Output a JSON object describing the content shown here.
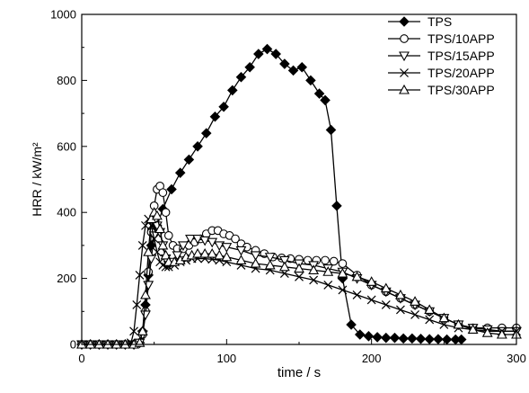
{
  "chart_data": {
    "type": "line",
    "title": "",
    "xlabel": "time / s",
    "ylabel": "HRR / kW/m²",
    "xlim": [
      0,
      300
    ],
    "ylim": [
      0,
      1000
    ],
    "x_ticks": [
      0,
      100,
      200,
      300
    ],
    "y_ticks": [
      0,
      200,
      400,
      600,
      800,
      1000
    ],
    "x_minor_step": 50,
    "y_minor_step": 100,
    "grid": false,
    "legend_position": "top-right",
    "series": [
      {
        "name": "TPS",
        "marker": "diamond-filled",
        "x": [
          0,
          6,
          12,
          18,
          24,
          30,
          36,
          40,
          42,
          44,
          46,
          48,
          52,
          56,
          62,
          68,
          74,
          80,
          86,
          92,
          98,
          104,
          110,
          116,
          122,
          128,
          134,
          140,
          146,
          152,
          158,
          164,
          168,
          172,
          176,
          180,
          186,
          192,
          198,
          204,
          210,
          216,
          222,
          228,
          234,
          240,
          246,
          252,
          258,
          262
        ],
        "y": [
          0,
          0,
          0,
          0,
          0,
          0,
          0,
          5,
          40,
          120,
          210,
          300,
          360,
          410,
          470,
          520,
          560,
          600,
          640,
          690,
          720,
          770,
          810,
          840,
          880,
          895,
          880,
          850,
          830,
          840,
          800,
          760,
          740,
          650,
          420,
          200,
          60,
          30,
          25,
          22,
          20,
          20,
          18,
          18,
          17,
          16,
          16,
          15,
          15,
          15
        ]
      },
      {
        "name": "TPS/10APP",
        "marker": "circle-open",
        "x": [
          0,
          6,
          12,
          18,
          24,
          30,
          36,
          40,
          42,
          44,
          46,
          48,
          50,
          52,
          54,
          56,
          58,
          60,
          63,
          66,
          70,
          74,
          78,
          82,
          86,
          90,
          94,
          98,
          102,
          106,
          110,
          114,
          120,
          126,
          132,
          138,
          144,
          150,
          156,
          162,
          168,
          174,
          180,
          190,
          200,
          210,
          220,
          230,
          240,
          250,
          260,
          270,
          280,
          290,
          300
        ],
        "y": [
          0,
          0,
          0,
          0,
          0,
          0,
          0,
          5,
          30,
          100,
          220,
          340,
          420,
          470,
          480,
          460,
          400,
          330,
          300,
          290,
          290,
          300,
          310,
          320,
          335,
          345,
          345,
          335,
          330,
          320,
          305,
          295,
          285,
          275,
          265,
          262,
          260,
          258,
          255,
          255,
          255,
          252,
          245,
          210,
          180,
          160,
          140,
          120,
          100,
          80,
          60,
          50,
          50,
          50,
          50
        ]
      },
      {
        "name": "TPS/15APP",
        "marker": "triangle-down-open",
        "x": [
          0,
          6,
          12,
          18,
          24,
          30,
          36,
          40,
          42,
          44,
          46,
          48,
          50,
          52,
          54,
          56,
          58,
          60,
          63,
          66,
          70,
          75,
          80,
          85,
          90,
          95,
          100,
          110,
          120,
          130,
          140,
          150,
          160,
          170,
          180,
          190,
          200,
          210,
          220,
          230,
          240,
          250,
          260,
          270,
          280,
          290,
          300
        ],
        "y": [
          0,
          0,
          0,
          0,
          0,
          0,
          0,
          5,
          30,
          90,
          180,
          260,
          330,
          360,
          340,
          300,
          260,
          240,
          250,
          270,
          300,
          320,
          320,
          315,
          310,
          300,
          295,
          285,
          270,
          265,
          255,
          245,
          240,
          230,
          220,
          200,
          180,
          160,
          140,
          120,
          100,
          80,
          60,
          50,
          45,
          40,
          40
        ]
      },
      {
        "name": "TPS/20APP",
        "marker": "x",
        "x": [
          0,
          6,
          12,
          18,
          24,
          30,
          34,
          36,
          38,
          40,
          42,
          44,
          46,
          48,
          50,
          52,
          54,
          56,
          58,
          60,
          64,
          68,
          72,
          76,
          80,
          85,
          90,
          95,
          100,
          110,
          120,
          130,
          140,
          150,
          160,
          170,
          180,
          190,
          200,
          210,
          220,
          230,
          240,
          250,
          260,
          270,
          280,
          290,
          300
        ],
        "y": [
          0,
          0,
          0,
          0,
          0,
          0,
          5,
          40,
          120,
          210,
          300,
          360,
          380,
          360,
          320,
          280,
          250,
          240,
          235,
          235,
          240,
          250,
          255,
          260,
          260,
          260,
          258,
          255,
          250,
          240,
          230,
          225,
          215,
          205,
          195,
          180,
          165,
          150,
          135,
          120,
          105,
          90,
          75,
          60,
          50,
          45,
          40,
          40,
          40
        ]
      },
      {
        "name": "TPS/30APP",
        "marker": "triangle-up-open",
        "x": [
          0,
          6,
          12,
          18,
          24,
          30,
          36,
          40,
          42,
          44,
          46,
          48,
          50,
          52,
          54,
          56,
          58,
          60,
          64,
          68,
          72,
          76,
          80,
          85,
          90,
          95,
          100,
          110,
          120,
          130,
          140,
          150,
          160,
          170,
          180,
          190,
          200,
          210,
          220,
          230,
          240,
          250,
          260,
          270,
          280,
          290,
          300
        ],
        "y": [
          0,
          0,
          0,
          0,
          0,
          0,
          0,
          5,
          40,
          150,
          280,
          380,
          400,
          390,
          350,
          300,
          270,
          250,
          250,
          255,
          265,
          270,
          275,
          275,
          275,
          270,
          265,
          255,
          245,
          240,
          235,
          230,
          225,
          220,
          215,
          205,
          190,
          170,
          150,
          130,
          105,
          80,
          60,
          45,
          35,
          30,
          30
        ]
      }
    ]
  }
}
